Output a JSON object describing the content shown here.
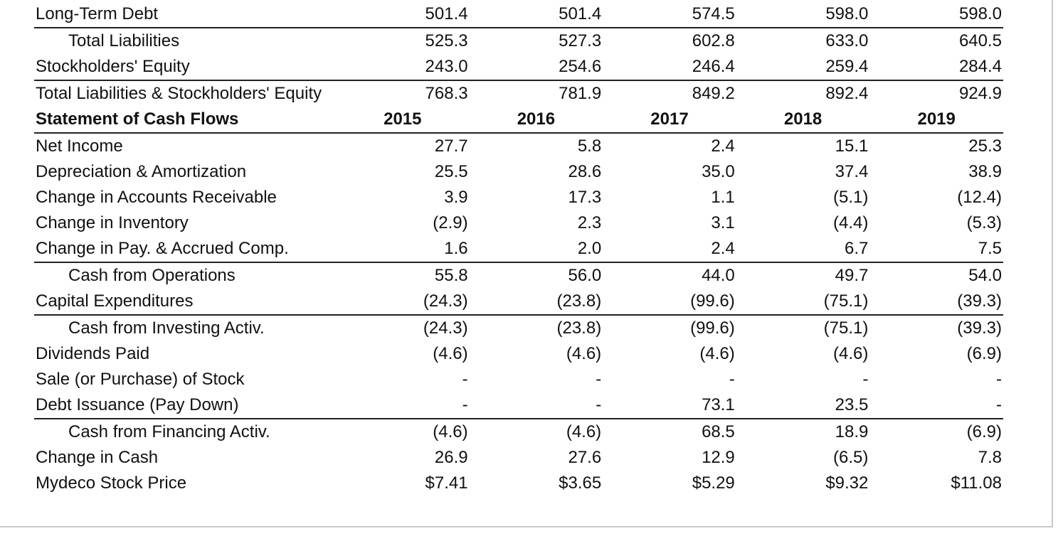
{
  "cash_flow_header": {
    "title": "Statement of Cash Flows",
    "years": [
      "2015",
      "2016",
      "2017",
      "2018",
      "2019"
    ]
  },
  "balance_rows": [
    {
      "label": "Long-Term Debt",
      "values": [
        "501.4",
        "501.4",
        "574.5",
        "598.0",
        "598.0"
      ]
    },
    {
      "label": "Total Liabilities",
      "values": [
        "525.3",
        "527.3",
        "602.8",
        "633.0",
        "640.5"
      ]
    },
    {
      "label": "Stockholders' Equity",
      "values": [
        "243.0",
        "254.6",
        "246.4",
        "259.4",
        "284.4"
      ]
    },
    {
      "label": "Total Liabilities & Stockholders' Equity",
      "values": [
        "768.3",
        "781.9",
        "849.2",
        "892.4",
        "924.9"
      ]
    }
  ],
  "cash_rows": [
    {
      "label": "Net Income",
      "values": [
        "27.7",
        "5.8",
        "2.4",
        "15.1",
        "25.3"
      ]
    },
    {
      "label": "Depreciation & Amortization",
      "values": [
        "25.5",
        "28.6",
        "35.0",
        "37.4",
        "38.9"
      ]
    },
    {
      "label": "Change in Accounts Receivable",
      "values": [
        "3.9",
        "17.3",
        "1.1",
        "(5.1)",
        "(12.4)"
      ]
    },
    {
      "label": "Change in Inventory",
      "values": [
        "(2.9)",
        "2.3",
        "3.1",
        "(4.4)",
        "(5.3)"
      ]
    },
    {
      "label": "Change in Pay. & Accrued Comp.",
      "values": [
        "1.6",
        "2.0",
        "2.4",
        "6.7",
        "7.5"
      ]
    },
    {
      "label": "Cash from Operations",
      "values": [
        "55.8",
        "56.0",
        "44.0",
        "49.7",
        "54.0"
      ]
    },
    {
      "label": "Capital Expenditures",
      "values": [
        "(24.3)",
        "(23.8)",
        "(99.6)",
        "(75.1)",
        "(39.3)"
      ]
    },
    {
      "label": "Cash from Investing Activ.",
      "values": [
        "(24.3)",
        "(23.8)",
        "(99.6)",
        "(75.1)",
        "(39.3)"
      ]
    },
    {
      "label": "Dividends Paid",
      "values": [
        "(4.6)",
        "(4.6)",
        "(4.6)",
        "(4.6)",
        "(6.9)"
      ]
    },
    {
      "label": "Sale (or Purchase) of Stock",
      "values": [
        "-",
        "-",
        "-",
        "-",
        "-"
      ]
    },
    {
      "label": "Debt Issuance (Pay Down)",
      "values": [
        "-",
        "-",
        "73.1",
        "23.5",
        "-"
      ]
    },
    {
      "label": "Cash from Financing Activ.",
      "values": [
        "(4.6)",
        "(4.6)",
        "68.5",
        "18.9",
        "(6.9)"
      ]
    },
    {
      "label": "Change in Cash",
      "values": [
        "26.9",
        "27.6",
        "12.9",
        "(6.5)",
        "7.8"
      ]
    },
    {
      "label": "Mydeco Stock Price",
      "values": [
        "$7.41",
        "$3.65",
        "$5.29",
        "$9.32",
        "$11.08"
      ]
    }
  ]
}
